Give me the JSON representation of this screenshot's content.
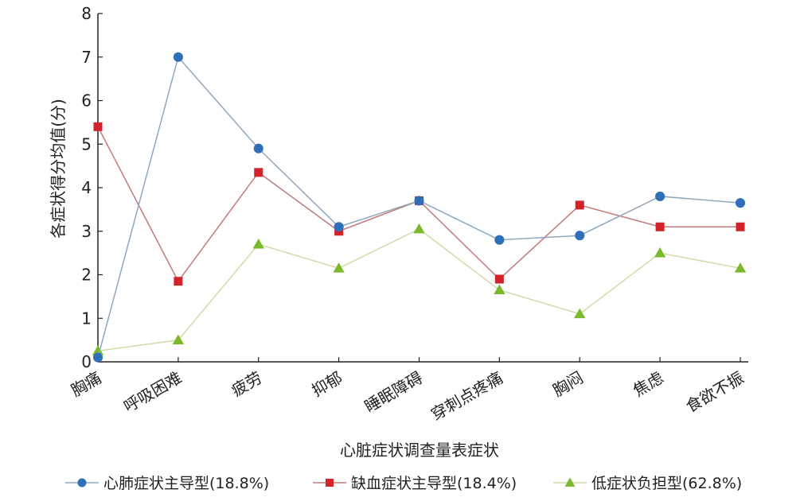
{
  "chart_data": {
    "type": "line",
    "title": "",
    "xlabel": "心脏症状调查量表症状",
    "ylabel": "各症状得分均值(分)",
    "ylim": [
      0,
      8
    ],
    "yticks": [
      "0",
      "1",
      "2",
      "3",
      "4",
      "5",
      "6",
      "7",
      "8"
    ],
    "categories": [
      "胸痛",
      "呼吸困难",
      "疲劳",
      "抑郁",
      "睡眠障碍",
      "穿刺点疼痛",
      "胸闷",
      "焦虑",
      "食欲不振"
    ],
    "grid": false,
    "legend_position": "bottom",
    "series": [
      {
        "name": "心肺症状主导型(18.8%)",
        "marker": "circle",
        "color": "#2e6fb7",
        "line_color": "#8fa7bd",
        "values": [
          0.1,
          7.0,
          4.9,
          3.1,
          3.7,
          2.8,
          2.9,
          3.8,
          3.65
        ]
      },
      {
        "name": "缺血症状主导型(18.4%)",
        "marker": "square",
        "color": "#d2232a",
        "line_color": "#c47a7a",
        "values": [
          5.4,
          1.85,
          4.35,
          3.0,
          3.7,
          1.9,
          3.6,
          3.1,
          3.1
        ]
      },
      {
        "name": "低症状负担型(62.8%)",
        "marker": "triangle",
        "color": "#7ab929",
        "line_color": "#cfdca6",
        "values": [
          0.25,
          0.5,
          2.7,
          2.15,
          3.05,
          1.65,
          1.1,
          2.5,
          2.15
        ]
      }
    ]
  }
}
